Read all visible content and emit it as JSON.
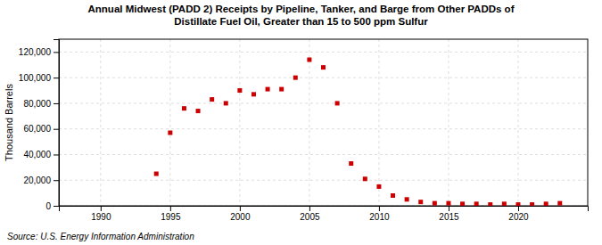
{
  "chart_data": {
    "type": "scatter",
    "title": "Annual Midwest (PADD 2) Receipts by Pipeline, Tanker, and Barge from Other PADDs of\nDistillate Fuel Oil, Greater than 15 to 500 ppm Sulfur",
    "ylabel": "Thousand Barrels",
    "source": "Source: U.S. Energy Information Administration",
    "color": "#cc0000",
    "marker": "square",
    "grid": true,
    "x": [
      1994,
      1995,
      1996,
      1997,
      1998,
      1999,
      2000,
      2001,
      2002,
      2003,
      2004,
      2005,
      2006,
      2007,
      2008,
      2009,
      2010,
      2011,
      2012,
      2013,
      2014,
      2015,
      2016,
      2017,
      2018,
      2019,
      2020,
      2021,
      2022,
      2023
    ],
    "values": [
      25000,
      57000,
      76000,
      74000,
      83000,
      80000,
      90000,
      87000,
      91000,
      91000,
      100000,
      114000,
      108000,
      80000,
      33000,
      21000,
      15000,
      8000,
      5000,
      3000,
      2000,
      2000,
      1500,
      1500,
      1000,
      1500,
      1000,
      1000,
      1500,
      2000
    ],
    "xlim": [
      1987,
      2025
    ],
    "ylim": [
      0,
      130000
    ],
    "xticks": [
      1990,
      1995,
      2000,
      2005,
      2010,
      2015,
      2020
    ],
    "yticks": [
      0,
      {
        "value": 20000,
        "label": "20,000"
      },
      {
        "value": 40000,
        "label": "40,000"
      },
      {
        "value": 60000,
        "label": "60,000"
      },
      {
        "value": 80000,
        "label": "80,000"
      },
      {
        "value": 100000,
        "label": "100,000"
      },
      {
        "value": 120000,
        "label": "120,000"
      }
    ]
  }
}
